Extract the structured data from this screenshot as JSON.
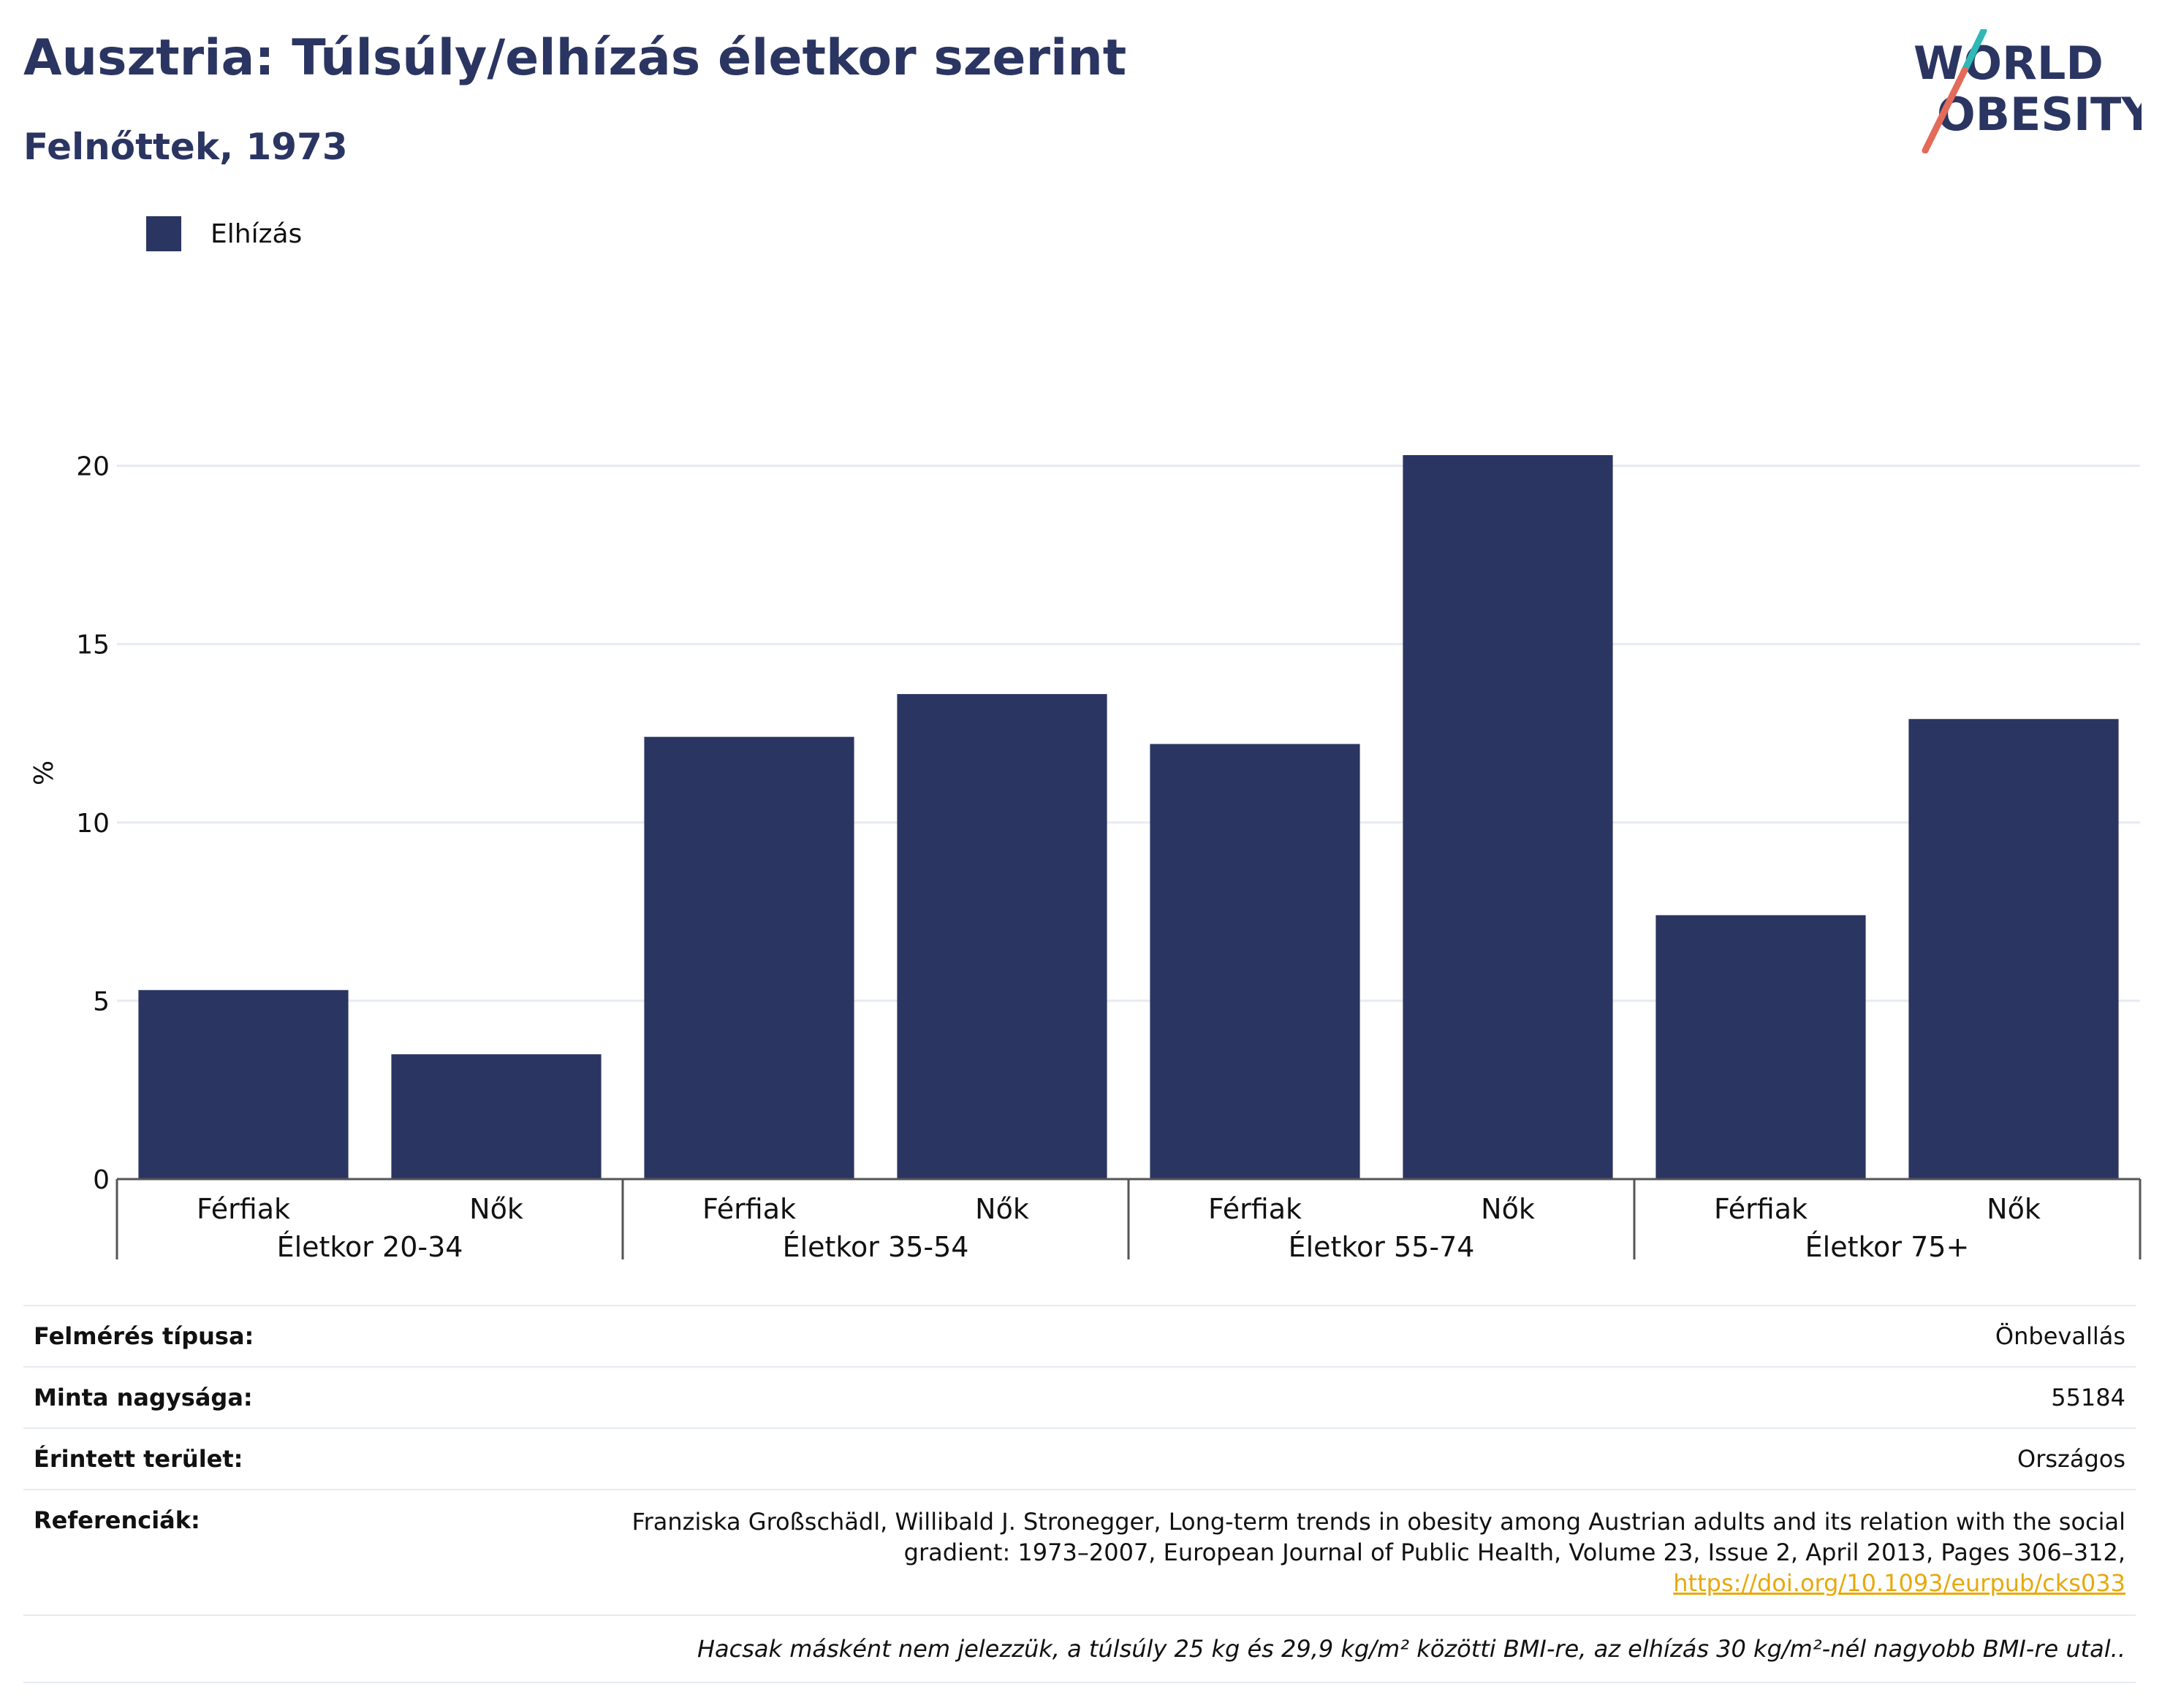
{
  "title": "Ausztria: Túlsúly/elhízás életkor szerint",
  "subtitle": "Felnőttek, 1973",
  "logo": {
    "line1": "WORLD",
    "line2": "OBESITY"
  },
  "colors": {
    "bar": "#2b3562",
    "grid": "#e6eaf2",
    "logo_teal": "#2fb8b5",
    "logo_red": "#e36b5a"
  },
  "chart_data": {
    "type": "bar",
    "ylabel": "%",
    "ylim": [
      0,
      22
    ],
    "yticks": [
      0,
      5,
      10,
      15,
      20
    ],
    "grid": true,
    "legend_position": "top-left",
    "series": [
      {
        "name": "Elhízás",
        "values": [
          5.3,
          3.5,
          12.4,
          13.6,
          12.2,
          20.3,
          7.4,
          12.9
        ]
      }
    ],
    "categories": [
      "Férfiak",
      "Nők",
      "Férfiak",
      "Nők",
      "Férfiak",
      "Nők",
      "Férfiak",
      "Nők"
    ],
    "groups": [
      "Életkor 20-34",
      "Életkor 35-54",
      "Életkor 55-74",
      "Életkor 75+"
    ]
  },
  "info": {
    "survey_type": {
      "label": "Felmérés típusa:",
      "value": "Önbevallás"
    },
    "sample_size": {
      "label": "Minta nagysága:",
      "value": "55184"
    },
    "area": {
      "label": "Érintett terület:",
      "value": "Országos"
    },
    "references": {
      "label": "Referenciák:",
      "text": "Franziska Großschädl, Willibald J. Stronegger, Long-term trends in obesity among Austrian adults and its relation with the social gradient: 1973–2007, European Journal of Public Health, Volume 23, Issue 2, April 2013, Pages 306–312,",
      "link": "https://doi.org/10.1093/eurpub/cks033"
    },
    "note": "Hacsak másként nem jelezzük, a túlsúly 25 kg és 29,9 kg/m² közötti BMI-re, az elhízás 30 kg/m²-nél nagyobb BMI-re utal.."
  }
}
